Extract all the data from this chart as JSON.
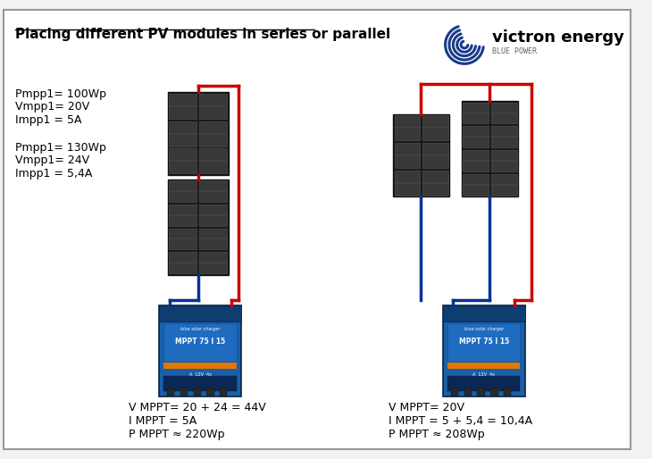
{
  "title": "Placing different PV modules in series or parallel",
  "bg_color": "#f2f2f2",
  "border_color": "#999999",
  "red_wire": "#cc0000",
  "blue_wire": "#003399",
  "charger_blue": "#1a5fa8",
  "charger_dark": "#0a3060",
  "left_labels_top": [
    "Pmpp1= 100Wp",
    "Vmpp1= 20V",
    "Impp1 = 5A"
  ],
  "left_labels_bot": [
    "Pmpp1= 130Wp",
    "Vmpp1= 24V",
    "Impp1 = 5,4A"
  ],
  "left_bottom_text": [
    "V MPPT= 20 + 24 = 44V",
    "I MPPT = 5A",
    "P MPPT ≈ 220Wp"
  ],
  "right_bottom_text": [
    "V MPPT= 20V",
    "I MPPT = 5 + 5,4 = 10,4A",
    "P MPPT ≈ 208Wp"
  ],
  "victron_text": "victron energy",
  "victron_sub": "BLUE POWER"
}
